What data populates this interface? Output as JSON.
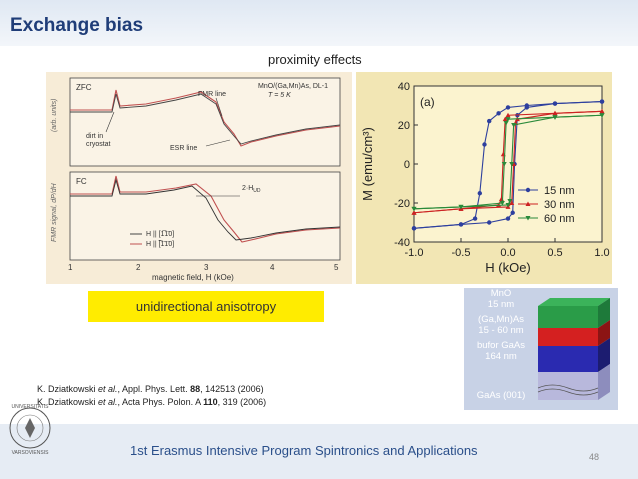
{
  "slide": {
    "title": "Exchange bias",
    "subtitle": "proximity effects",
    "page_number": "48"
  },
  "fmr_figure": {
    "panel_top": {
      "label": "ZFC",
      "sample": "MnO/(Ga,Mn)As, DL-1",
      "temperature": "T = 5 K",
      "annotations": {
        "fmr_line": "FMR line",
        "esr_line": "ESR line",
        "dirt": "dirt in",
        "dirt2": "cryostat"
      },
      "ylabel": "(arb. units)"
    },
    "panel_bottom": {
      "label": "FC",
      "shift_label": "2·H",
      "shift_sub": "UD",
      "legend": [
        "H || [1̅1̄0]",
        "H || [̅1̄1̄0]"
      ],
      "ylabel": "FMR signal, dP/dH"
    },
    "x_ticks": [
      "1",
      "2",
      "3",
      "4",
      "5"
    ],
    "xlabel": "magnetic field, H (kOe)"
  },
  "chart_data": {
    "type": "line",
    "title": "(a)",
    "xlabel": "H (kOe)",
    "ylabel": "M (emu/cm³)",
    "xlim": [
      -1.0,
      1.0
    ],
    "ylim": [
      -40,
      40
    ],
    "x_ticks": [
      "-1.0",
      "-0.5",
      "0.0",
      "0.5",
      "1.0"
    ],
    "y_ticks": [
      "40",
      "20",
      "0",
      "-20",
      "-40"
    ],
    "series": [
      {
        "name": "15 nm",
        "color": "#2d3f9e",
        "marker": "circle",
        "x_down": [
          1.0,
          0.5,
          0.2,
          0.0,
          -0.1,
          -0.2,
          -0.25,
          -0.3,
          -0.35,
          -0.5,
          -1.0
        ],
        "y_down": [
          32,
          31,
          30,
          29,
          26,
          22,
          10,
          -15,
          -28,
          -31,
          -33
        ],
        "x_up": [
          -1.0,
          -0.5,
          -0.2,
          0.0,
          0.05,
          0.07,
          0.1,
          0.2,
          0.5,
          1.0
        ],
        "y_up": [
          -33,
          -31,
          -30,
          -28,
          -25,
          0,
          25,
          29,
          31,
          32
        ]
      },
      {
        "name": "30 nm",
        "color": "#cc2222",
        "marker": "triangle",
        "x_down": [
          1.0,
          0.5,
          0.0,
          -0.03,
          -0.05,
          -0.07,
          -0.1,
          -0.5,
          -1.0
        ],
        "y_down": [
          27,
          26,
          25,
          23,
          5,
          -18,
          -21,
          -23,
          -25
        ],
        "x_up": [
          -1.0,
          -0.5,
          0.0,
          0.04,
          0.06,
          0.08,
          0.1,
          0.5,
          1.0
        ],
        "y_up": [
          -25,
          -23,
          -22,
          -20,
          0,
          21,
          23,
          26,
          27
        ]
      },
      {
        "name": "60 nm",
        "color": "#2a8a3a",
        "marker": "triangle-down",
        "x_down": [
          1.0,
          0.5,
          0.0,
          -0.02,
          -0.04,
          -0.06,
          -0.5,
          -1.0
        ],
        "y_down": [
          25,
          24,
          23,
          21,
          0,
          -20,
          -22,
          -23
        ],
        "x_up": [
          -1.0,
          -0.5,
          0.0,
          0.02,
          0.04,
          0.06,
          0.5,
          1.0
        ],
        "y_up": [
          -23,
          -22,
          -21,
          -19,
          0,
          20,
          24,
          25
        ]
      }
    ]
  },
  "highlight": {
    "text": "unidirectional anisotropy"
  },
  "layers": {
    "mno": "MnO",
    "mno_t": "15 nm",
    "gamnas": "(Ga,Mn)As",
    "gamnas_t": "15 - 60 nm",
    "bufor": "bufor GaAs",
    "bufor_t": "164 nm",
    "substrate": "GaAs (001)"
  },
  "references": [
    {
      "author": "K. Dziatkowski ",
      "etal": "et al.",
      "journal": ", Appl. Phys. Lett. ",
      "vol": "88",
      "rest": ", 142513 (2006)"
    },
    {
      "author": "K. Dziatkowski ",
      "etal": "et al.",
      "journal": ", Acta Phys. Polon. A ",
      "vol": "110",
      "rest": ", 319 (2006)"
    }
  ],
  "footer": {
    "text": "1st Erasmus Intensive Program Spintronics and Applications"
  },
  "logo": {
    "text": "UNIVERSITATIS VARSOVIENSIS"
  }
}
